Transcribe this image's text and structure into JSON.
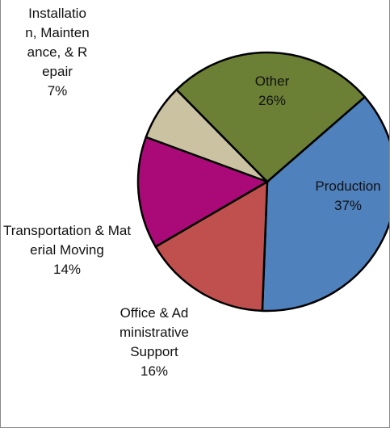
{
  "chart_data": {
    "type": "pie",
    "categories": [
      "Production",
      "Office & Administrative Support",
      "Transportation & Material Moving",
      "Installation, Maintenance, & Repair",
      "Other"
    ],
    "values": [
      37,
      16,
      14,
      7,
      26
    ],
    "value_labels": [
      "37%",
      "16%",
      "14%",
      "7%",
      "26%"
    ],
    "colors": [
      "#4f81bd",
      "#c0504d",
      "#aa0a78",
      "#cbc2a2",
      "#6b7f35"
    ]
  }
}
